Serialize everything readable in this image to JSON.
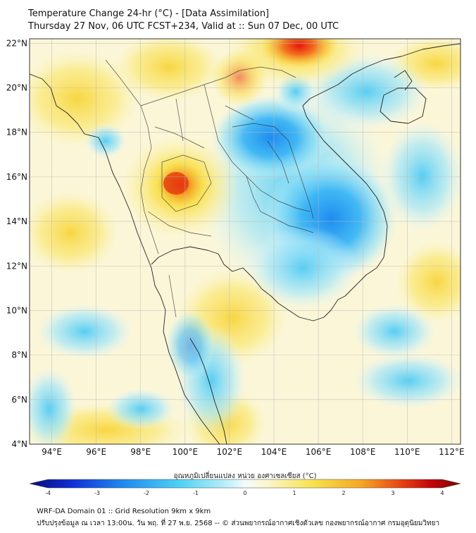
{
  "title": {
    "line1": "Temperature Change 24-hr (°C) - [Data Assimilation]",
    "line2": "Thursday 27 Nov, 06 UTC FCST+234, Valid at :: Sun 07 Dec, 00 UTC"
  },
  "map": {
    "lat_labels": [
      "22°N",
      "20°N",
      "18°N",
      "16°N",
      "14°N",
      "12°N",
      "10°N",
      "8°N",
      "6°N",
      "4°N"
    ],
    "lon_labels": [
      "94°E",
      "96°E",
      "98°E",
      "100°E",
      "102°E",
      "104°E",
      "106°E",
      "108°E",
      "110°E",
      "112°E"
    ],
    "lat_values": [
      22,
      20,
      18,
      16,
      14,
      12,
      10,
      8,
      6,
      4
    ],
    "lon_values": [
      94,
      96,
      98,
      100,
      102,
      104,
      106,
      108,
      110,
      112
    ],
    "extent": {
      "lon_min": 93,
      "lon_max": 112.4,
      "lat_min": 4,
      "lat_max": 22.2
    }
  },
  "anomalies": [
    {
      "name": "warm-core-central-thailand",
      "lon": 99.9,
      "lat": 15.6,
      "value": 2.6
    },
    {
      "name": "warm-north-vietnam",
      "lon": 105.5,
      "lat": 21.8,
      "value": 3.0
    },
    {
      "name": "warm-burma",
      "lon": 97.8,
      "lat": 18.0,
      "value": 1.2
    },
    {
      "name": "cold-laos",
      "lon": 103.6,
      "lat": 17.8,
      "value": -2.2
    },
    {
      "name": "cold-cambodia-vietnam",
      "lon": 106.3,
      "lat": 13.8,
      "value": -1.8
    },
    {
      "name": "cold-gulf-west",
      "lon": 100.6,
      "lat": 7.5,
      "value": -1.0
    },
    {
      "name": "warm-gulf-center",
      "lon": 101.8,
      "lat": 9.6,
      "value": 0.9
    }
  ],
  "colorbar": {
    "label": "อุณหภูมิเปลี่ยนแปลง หน่วย องศาเซลเซียส (°C)",
    "ticks": [
      "-4",
      "-3",
      "-2",
      "-1",
      "0",
      "1",
      "2",
      "3",
      "4"
    ],
    "tick_values": [
      -4,
      -3,
      -2,
      -1,
      0,
      1,
      2,
      3,
      4
    ],
    "colors": [
      "#0a0a7a",
      "#1030d8",
      "#1f8cf0",
      "#4fd3f5",
      "#e8f7fb",
      "#fbf6cf",
      "#f8e14a",
      "#f6a623",
      "#e84514",
      "#c4050a",
      "#7a0004"
    ]
  },
  "footer": {
    "line1": "WRF-DA Domain 01 :: Grid Resolution 9km x 9km",
    "line2": "ปรับปรุงข้อมูล ณ เวลา 13:00น. วัน พฤ. ที่ 27 พ.ย. 2568 -- © ส่วนพยากรณ์อากาศเชิงตัวเลข กองพยากรณ์อากาศ กรมอุตุนิยมวิทยา"
  }
}
